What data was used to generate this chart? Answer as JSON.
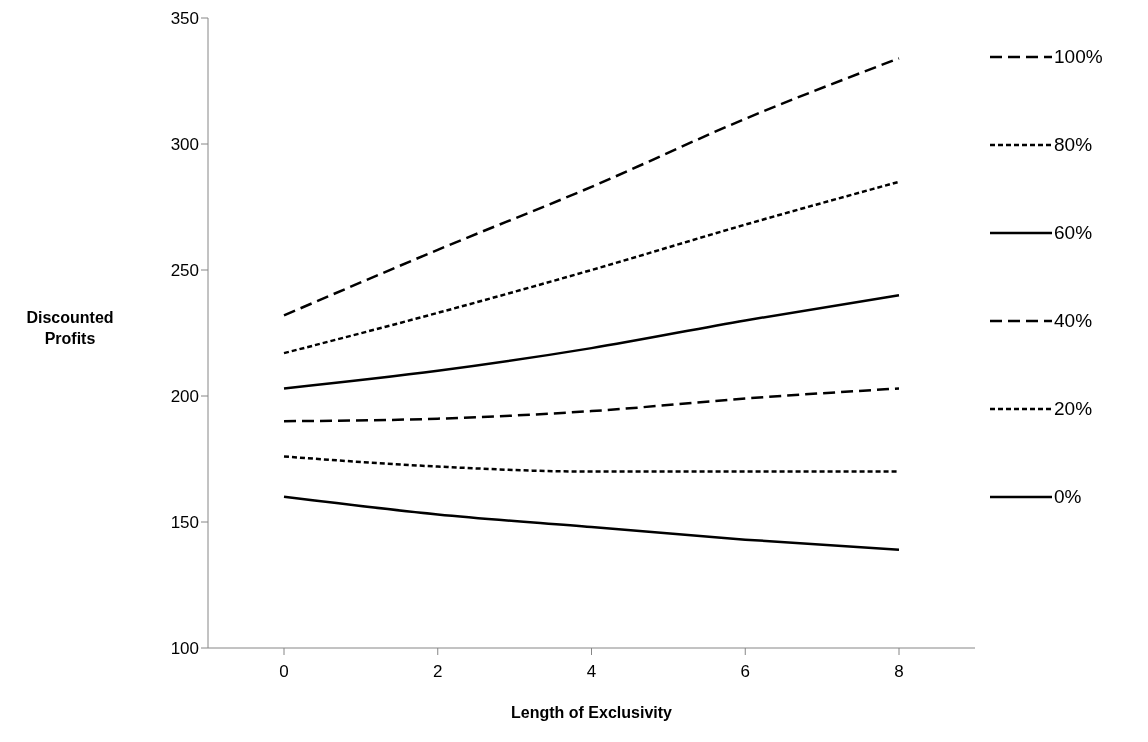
{
  "chart_data": {
    "type": "line",
    "xlabel": "Length of Exclusivity",
    "ylabel": "Discounted Profits",
    "categories": [
      "0",
      "2",
      "4",
      "6",
      "8"
    ],
    "ylim": [
      100,
      350
    ],
    "yticks": [
      100,
      150,
      200,
      250,
      300,
      350
    ],
    "grid": false,
    "legend": "right",
    "marker": "none",
    "series": [
      {
        "name": "100%",
        "color": "#000000",
        "line_style": "dashed",
        "values": [
          232,
          258,
          283,
          310,
          334
        ]
      },
      {
        "name": "80%",
        "color": "#000000",
        "line_style": "dotted",
        "values": [
          217,
          233,
          250,
          268,
          285
        ]
      },
      {
        "name": "60%",
        "color": "#000000",
        "line_style": "solid",
        "values": [
          203,
          210,
          219,
          230,
          240
        ]
      },
      {
        "name": "40%",
        "color": "#000000",
        "line_style": "dashed",
        "values": [
          190,
          191,
          194,
          199,
          203
        ]
      },
      {
        "name": "20%",
        "color": "#000000",
        "line_style": "dotted",
        "values": [
          176,
          172,
          170,
          170,
          170
        ]
      },
      {
        "name": "0%",
        "color": "#000000",
        "line_style": "solid",
        "values": [
          160,
          153,
          148,
          143,
          139
        ]
      }
    ]
  }
}
